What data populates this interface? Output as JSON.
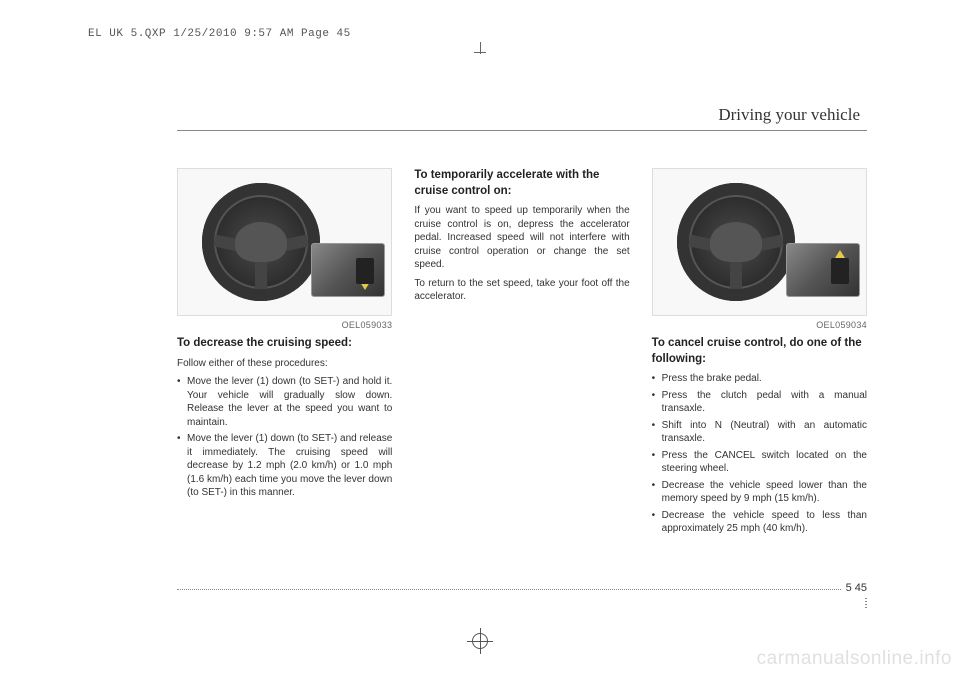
{
  "header_stamp": "EL UK 5.QXP  1/25/2010  9:57 AM  Page 45",
  "section_title": "Driving your vehicle",
  "col1": {
    "img_code": "OEL059033",
    "heading": "To decrease the cruising speed:",
    "intro": "Follow either of these procedures:",
    "bullets": [
      "Move the lever (1) down (to SET-) and hold it. Your vehicle will gradually slow down. Release the lever at the speed you want to maintain.",
      "Move the lever (1) down (to SET-) and release it immediately. The cruising speed will decrease by 1.2 mph (2.0 km/h)  or 1.0 mph (1.6 km/h) each time you move the lever down (to SET-) in this manner."
    ]
  },
  "col2": {
    "heading": "To temporarily accelerate with the cruise control on:",
    "para1": "If you want to speed up temporarily when the cruise control is on, depress the accelerator pedal. Increased speed will not interfere with cruise control operation or change the set speed.",
    "para2": "To return to the set speed, take your foot off the accelerator."
  },
  "col3": {
    "img_code": "OEL059034",
    "heading": "To cancel cruise control, do one of the following:",
    "bullets": [
      "Press the brake pedal.",
      "Press the clutch pedal with a manual transaxle.",
      "Shift into N (Neutral) with an automatic transaxle.",
      "Press the CANCEL switch located on the steering wheel.",
      "Decrease the vehicle speed lower than the memory speed by 9 mph (15 km/h).",
      "Decrease the vehicle speed to less than approximately 25 mph (40 km/h)."
    ]
  },
  "page_chapter": "5",
  "page_number": "45",
  "watermark": "carmanualsonline.info",
  "colors": {
    "text": "#333333",
    "heading": "#222222",
    "rule": "#888888",
    "watermark": "#e0e0e0",
    "arrow": "#e6c84a"
  }
}
